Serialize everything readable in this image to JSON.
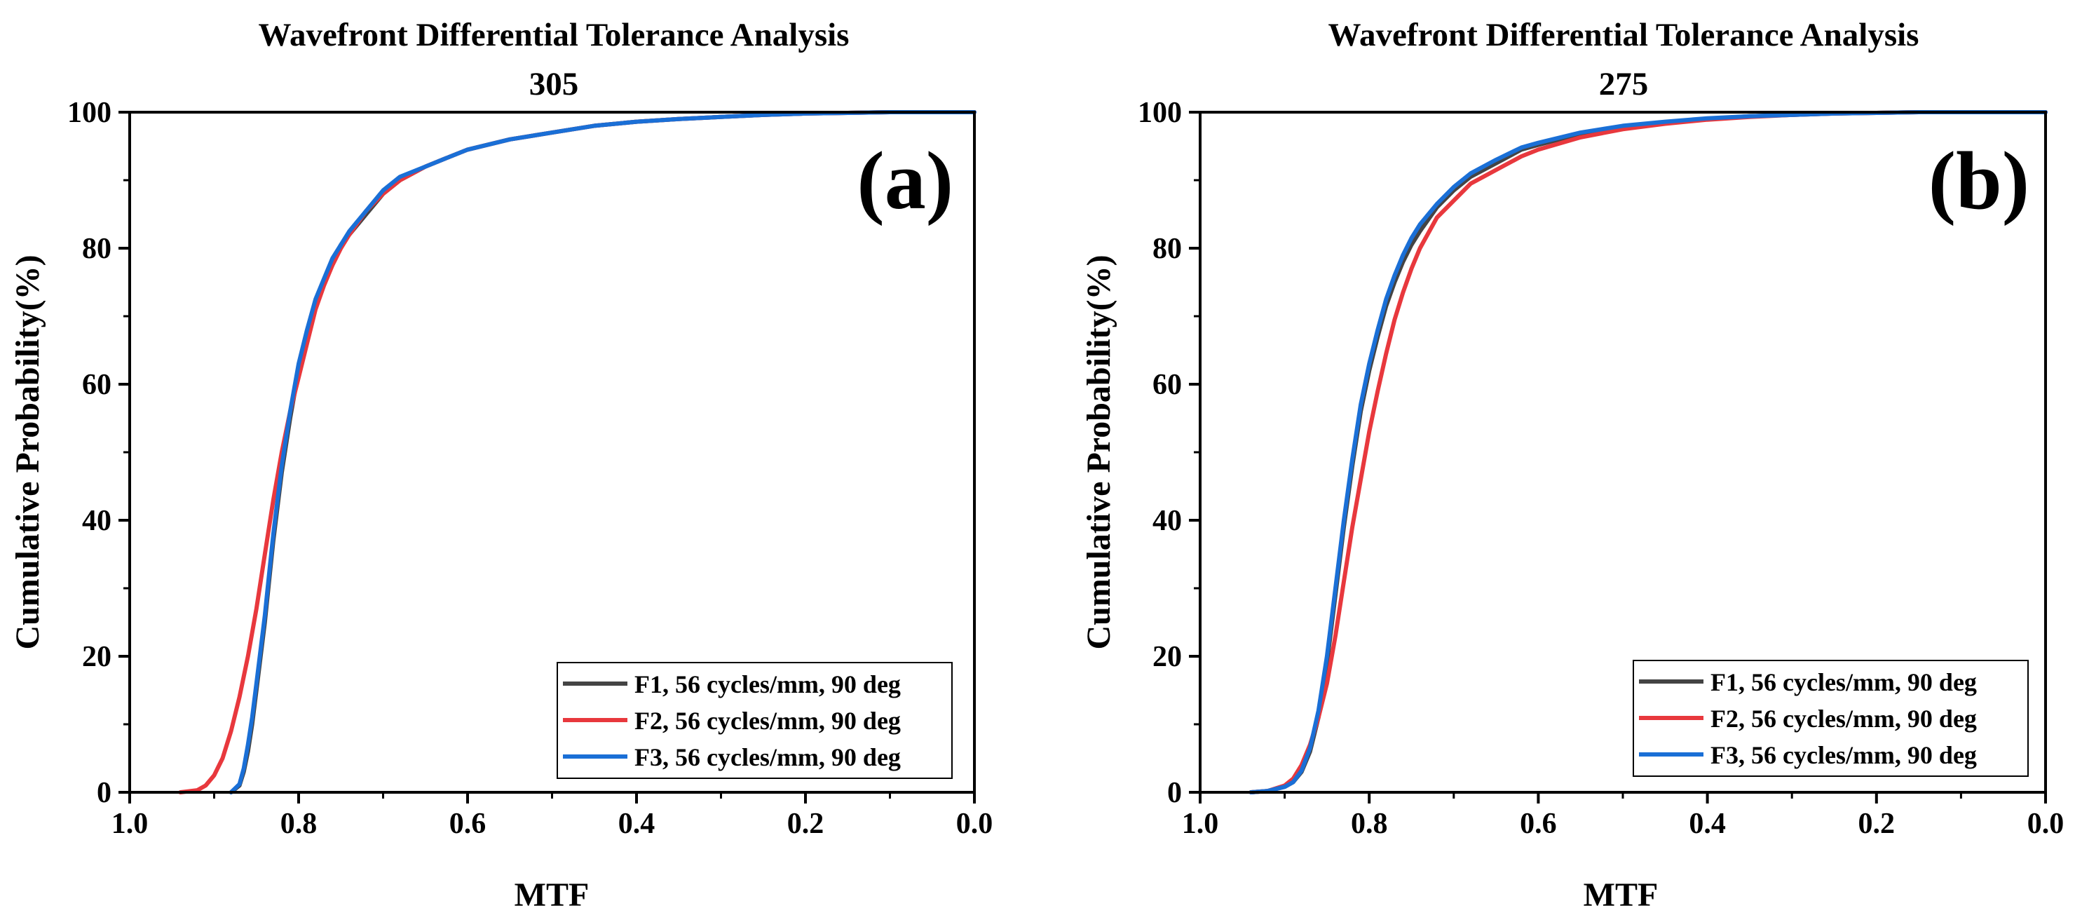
{
  "chart_data": [
    {
      "type": "line",
      "panel_label": "(a)",
      "title": "Wavefront Differential Tolerance Analysis",
      "subtitle": "305",
      "xlabel": "MTF",
      "ylabel": "Cumulative Probability(%)",
      "xlim": [
        1.0,
        0.0
      ],
      "ylim": [
        0,
        100
      ],
      "x_ticks": [
        "1.0",
        "0.8",
        "0.6",
        "0.4",
        "0.2",
        "0.0"
      ],
      "y_ticks": [
        "0",
        "20",
        "40",
        "60",
        "80",
        "100"
      ],
      "legend_position": "bottom-right",
      "series": [
        {
          "name": "F1, 56 cycles/mm, 90 deg",
          "color": "#444444",
          "x": [
            0.88,
            0.87,
            0.865,
            0.86,
            0.855,
            0.85,
            0.845,
            0.84,
            0.835,
            0.83,
            0.82,
            0.81,
            0.8,
            0.79,
            0.78,
            0.77,
            0.76,
            0.75,
            0.74,
            0.72,
            0.7,
            0.68,
            0.65,
            0.62,
            0.6,
            0.55,
            0.5,
            0.45,
            0.4,
            0.35,
            0.3,
            0.25,
            0.2,
            0.15,
            0.1,
            0.0
          ],
          "y": [
            0,
            1,
            3,
            6,
            10,
            15,
            20,
            25,
            31,
            37,
            47,
            55,
            62,
            67,
            72,
            75,
            78,
            80.5,
            82,
            85,
            88,
            90,
            92,
            93.5,
            94.5,
            96,
            97,
            98,
            98.6,
            99,
            99.3,
            99.6,
            99.8,
            99.9,
            100,
            100
          ]
        },
        {
          "name": "F2, 56 cycles/mm, 90 deg",
          "color": "#e8383d",
          "x": [
            0.94,
            0.92,
            0.91,
            0.9,
            0.89,
            0.88,
            0.87,
            0.86,
            0.85,
            0.84,
            0.83,
            0.82,
            0.81,
            0.8,
            0.79,
            0.78,
            0.77,
            0.76,
            0.75,
            0.74,
            0.72,
            0.7,
            0.68,
            0.65,
            0.62,
            0.6,
            0.55,
            0.5,
            0.45,
            0.4,
            0.35,
            0.3,
            0.25,
            0.2,
            0.15,
            0.1,
            0.0
          ],
          "y": [
            0,
            0.3,
            1,
            2.5,
            5,
            9,
            14,
            20,
            27,
            35,
            43,
            50,
            56,
            61,
            66,
            71,
            74.5,
            77.5,
            80,
            82,
            85.5,
            88,
            90,
            92,
            93.5,
            94.5,
            96,
            97,
            98,
            98.6,
            99,
            99.3,
            99.6,
            99.8,
            99.9,
            100,
            100
          ]
        },
        {
          "name": "F3, 56 cycles/mm, 90 deg",
          "color": "#1a6fd6",
          "x": [
            0.88,
            0.87,
            0.865,
            0.86,
            0.855,
            0.85,
            0.845,
            0.84,
            0.835,
            0.83,
            0.82,
            0.81,
            0.8,
            0.79,
            0.78,
            0.77,
            0.76,
            0.75,
            0.74,
            0.72,
            0.7,
            0.68,
            0.65,
            0.62,
            0.6,
            0.55,
            0.5,
            0.45,
            0.4,
            0.35,
            0.3,
            0.25,
            0.2,
            0.15,
            0.1,
            0.0
          ],
          "y": [
            0,
            1.2,
            3.5,
            7,
            11,
            16,
            21,
            26,
            32,
            38,
            48,
            56,
            63,
            68,
            72.5,
            75.5,
            78.5,
            80.5,
            82.5,
            85.5,
            88.5,
            90.5,
            92,
            93.5,
            94.5,
            96,
            97,
            98,
            98.6,
            99,
            99.3,
            99.6,
            99.8,
            99.9,
            100,
            100
          ]
        }
      ]
    },
    {
      "type": "line",
      "panel_label": "(b)",
      "title": "Wavefront Differential Tolerance Analysis",
      "subtitle": "275",
      "xlabel": "MTF",
      "ylabel": "Cumulative Probability(%)",
      "xlim": [
        1.0,
        0.0
      ],
      "ylim": [
        0,
        100
      ],
      "x_ticks": [
        "1.0",
        "0.8",
        "0.6",
        "0.4",
        "0.2",
        "0.0"
      ],
      "y_ticks": [
        "0",
        "20",
        "40",
        "60",
        "80",
        "100"
      ],
      "legend_position": "bottom-right",
      "series": [
        {
          "name": "F1, 56 cycles/mm, 90 deg",
          "color": "#444444",
          "x": [
            0.94,
            0.92,
            0.9,
            0.89,
            0.88,
            0.87,
            0.86,
            0.85,
            0.84,
            0.83,
            0.82,
            0.81,
            0.8,
            0.79,
            0.78,
            0.77,
            0.76,
            0.75,
            0.74,
            0.72,
            0.7,
            0.68,
            0.65,
            0.62,
            0.6,
            0.55,
            0.5,
            0.45,
            0.4,
            0.35,
            0.3,
            0.25,
            0.2,
            0.15,
            0.1,
            0.0
          ],
          "y": [
            0,
            0.2,
            0.8,
            1.5,
            3,
            6,
            11,
            19,
            29,
            39,
            48,
            56,
            62,
            67,
            71.5,
            75,
            78,
            80.5,
            82.5,
            86,
            88.5,
            90.5,
            92.5,
            94.5,
            95.2,
            96.8,
            97.8,
            98.5,
            99,
            99.4,
            99.6,
            99.8,
            99.9,
            100,
            100,
            100
          ]
        },
        {
          "name": "F2, 56 cycles/mm, 90 deg",
          "color": "#e8383d",
          "x": [
            0.94,
            0.92,
            0.9,
            0.89,
            0.88,
            0.87,
            0.86,
            0.85,
            0.84,
            0.83,
            0.82,
            0.81,
            0.8,
            0.79,
            0.78,
            0.77,
            0.76,
            0.75,
            0.74,
            0.72,
            0.7,
            0.68,
            0.65,
            0.62,
            0.6,
            0.55,
            0.5,
            0.45,
            0.4,
            0.35,
            0.3,
            0.25,
            0.2,
            0.15,
            0.1,
            0.0
          ],
          "y": [
            0,
            0.2,
            1,
            2,
            4,
            7,
            11,
            16,
            23,
            31,
            39,
            46,
            53,
            59,
            64.5,
            69.5,
            73.5,
            77,
            80,
            84.5,
            87,
            89.5,
            91.5,
            93.5,
            94.5,
            96.3,
            97.5,
            98.3,
            98.9,
            99.3,
            99.6,
            99.8,
            99.9,
            100,
            100,
            100
          ]
        },
        {
          "name": "F3, 56 cycles/mm, 90 deg",
          "color": "#1a6fd6",
          "x": [
            0.94,
            0.92,
            0.9,
            0.89,
            0.88,
            0.87,
            0.86,
            0.85,
            0.84,
            0.83,
            0.82,
            0.81,
            0.8,
            0.79,
            0.78,
            0.77,
            0.76,
            0.75,
            0.74,
            0.72,
            0.7,
            0.68,
            0.65,
            0.62,
            0.6,
            0.55,
            0.5,
            0.45,
            0.4,
            0.35,
            0.3,
            0.25,
            0.2,
            0.15,
            0.1,
            0.0
          ],
          "y": [
            0,
            0.2,
            0.8,
            1.5,
            3.2,
            6.5,
            12,
            20,
            30,
            40,
            49,
            57,
            63,
            68,
            72.5,
            76,
            79,
            81.5,
            83.5,
            86.5,
            89,
            91,
            93,
            94.8,
            95.5,
            97,
            98,
            98.6,
            99.1,
            99.4,
            99.6,
            99.8,
            99.9,
            100,
            100,
            100
          ]
        }
      ]
    }
  ]
}
